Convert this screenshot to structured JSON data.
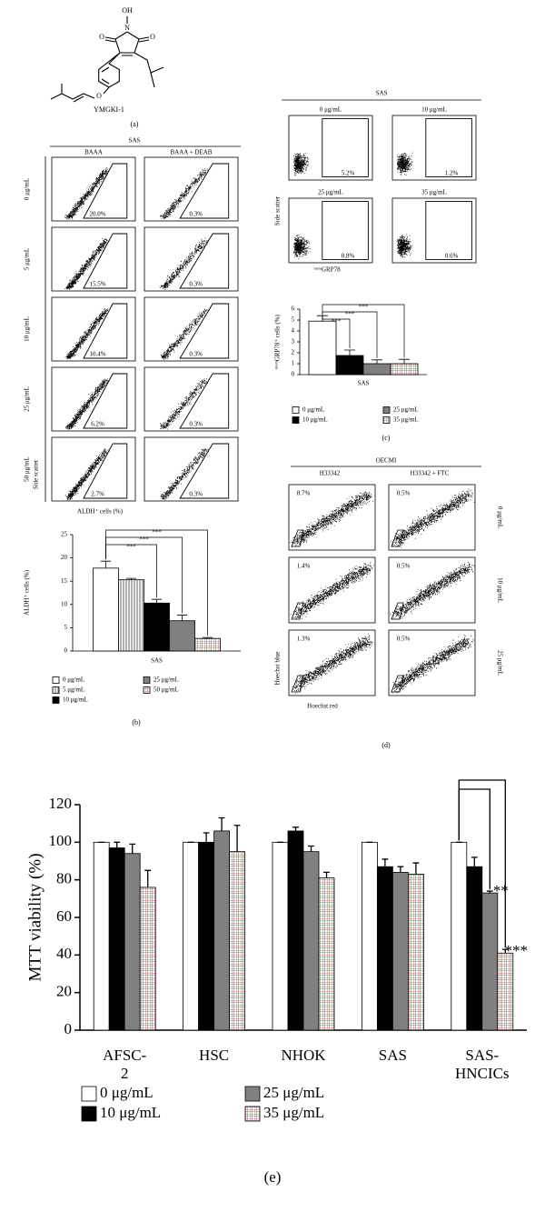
{
  "structure": {
    "atoms": [
      "OH",
      "N",
      "O",
      "O",
      "O"
    ],
    "name": "YMGKI-1"
  },
  "panel_labels": [
    "(a)",
    "(b)",
    "(c)",
    "(d)",
    "(e)"
  ],
  "flow_b": {
    "title": "SAS",
    "columns": [
      "BAAA",
      "BAAA + DEAB"
    ],
    "rows": [
      "0 μg/mL",
      "5 μg/mL",
      "10 μg/mL",
      "25 μg/mL",
      "50 μg/mL"
    ],
    "percentages": [
      [
        "20.0%",
        "0.3%"
      ],
      [
        "15.5%",
        "0.3%"
      ],
      [
        "10.4%",
        "0.3%"
      ],
      [
        "6.2%",
        "0.3%"
      ],
      [
        "2.7%",
        "0.3%"
      ]
    ],
    "y_label": "Side scatter",
    "x_label": "ALDH⁺ cells (%)"
  },
  "flow_c": {
    "title": "SAS",
    "plot_labels": [
      "0 μg/mL",
      "10 μg/mL",
      "25 μg/mL",
      "35 μg/mL"
    ],
    "percentages": [
      "5.2%",
      "1.2%",
      "0.8%",
      "0.6%"
    ],
    "y_label": "Side scatter",
    "x_label": "ᵐᵉᵐGRP78"
  },
  "flow_d": {
    "title": "OECMI",
    "columns": [
      "H33342",
      "H33342 + FTC"
    ],
    "rows": [
      "0 μg/mL",
      "10 μg/mL",
      "25 μg/mL"
    ],
    "percentages": [
      [
        "8.7%",
        "0.5%"
      ],
      [
        "1.4%",
        "0.5%"
      ],
      [
        "1.3%",
        "0.5%"
      ]
    ],
    "y_label": "Hoechst blue",
    "x_label": "Hoechst red"
  },
  "chart_data": [
    {
      "type": "bar",
      "y_label": "ALDH⁺ cells (%)",
      "categories": [
        "SAS"
      ],
      "series": [
        {
          "name": "0 μg/mL",
          "color": "#ffffff",
          "pattern": null,
          "values": [
            17.8
          ],
          "errors": [
            1.5
          ]
        },
        {
          "name": "5 μg/mL",
          "color": "#ffffff",
          "pattern": "vstripe",
          "values": [
            15.3
          ],
          "errors": [
            0.3
          ]
        },
        {
          "name": "10 μg/mL",
          "color": "#000000",
          "pattern": null,
          "values": [
            10.3
          ],
          "errors": [
            0.8
          ]
        },
        {
          "name": "25 μg/mL",
          "color": "#808080",
          "pattern": null,
          "values": [
            6.5
          ],
          "errors": [
            1.2
          ]
        },
        {
          "name": "50 μg/mL",
          "color": "#e8c8d0",
          "pattern": "grid",
          "values": [
            2.7
          ],
          "errors": [
            0.2
          ]
        }
      ],
      "ylim": [
        0,
        25
      ],
      "yticks": [
        0,
        5,
        10,
        15,
        20,
        25
      ],
      "significance": [
        "***",
        "***",
        "***"
      ]
    },
    {
      "type": "bar",
      "y_label": "ᵐᵉᵐGRP78⁺ cells (%)",
      "categories": [
        "SAS"
      ],
      "series": [
        {
          "name": "0 μg/mL",
          "color": "#ffffff",
          "pattern": null,
          "values": [
            4.9
          ],
          "errors": [
            0.5
          ]
        },
        {
          "name": "10 μg/mL",
          "color": "#000000",
          "pattern": null,
          "values": [
            1.75
          ],
          "errors": [
            0.5
          ]
        },
        {
          "name": "25 μg/mL",
          "color": "#808080",
          "pattern": null,
          "values": [
            1.0
          ],
          "errors": [
            0.35
          ]
        },
        {
          "name": "35 μg/mL",
          "color": "#e8c8d0",
          "pattern": "grid",
          "values": [
            1.0
          ],
          "errors": [
            0.4
          ]
        }
      ],
      "ylim": [
        0,
        6
      ],
      "yticks": [
        0,
        1,
        2,
        3,
        4,
        5,
        6
      ],
      "significance": [
        "***",
        "***",
        "***"
      ]
    },
    {
      "type": "bar",
      "y_label": "MTT viability (%)",
      "categories": [
        "AFSC-2",
        "HSC",
        "NHOK",
        "SAS",
        "SAS-HNCICs"
      ],
      "series": [
        {
          "name": "0 μg/mL",
          "color": "#ffffff",
          "pattern": null,
          "values": [
            100,
            100,
            100,
            100,
            100
          ],
          "errors": [
            0,
            0,
            0,
            0,
            0
          ]
        },
        {
          "name": "10 μg/mL",
          "color": "#000000",
          "pattern": null,
          "values": [
            97,
            100,
            106,
            87,
            87
          ],
          "errors": [
            3,
            5,
            2,
            4,
            5
          ]
        },
        {
          "name": "25 μg/mL",
          "color": "#808080",
          "pattern": null,
          "values": [
            94,
            106,
            95,
            84,
            73
          ],
          "errors": [
            5,
            7,
            3,
            3,
            1
          ]
        },
        {
          "name": "35 μg/mL",
          "color": "#c8e8c0",
          "pattern": "grid",
          "values": [
            76,
            95,
            81,
            83,
            41
          ],
          "errors": [
            9,
            14,
            3,
            6,
            2
          ]
        }
      ],
      "ylim": [
        0,
        120
      ],
      "yticks": [
        0,
        20,
        40,
        60,
        80,
        100,
        120
      ],
      "significance": [
        "**",
        "***"
      ]
    }
  ]
}
